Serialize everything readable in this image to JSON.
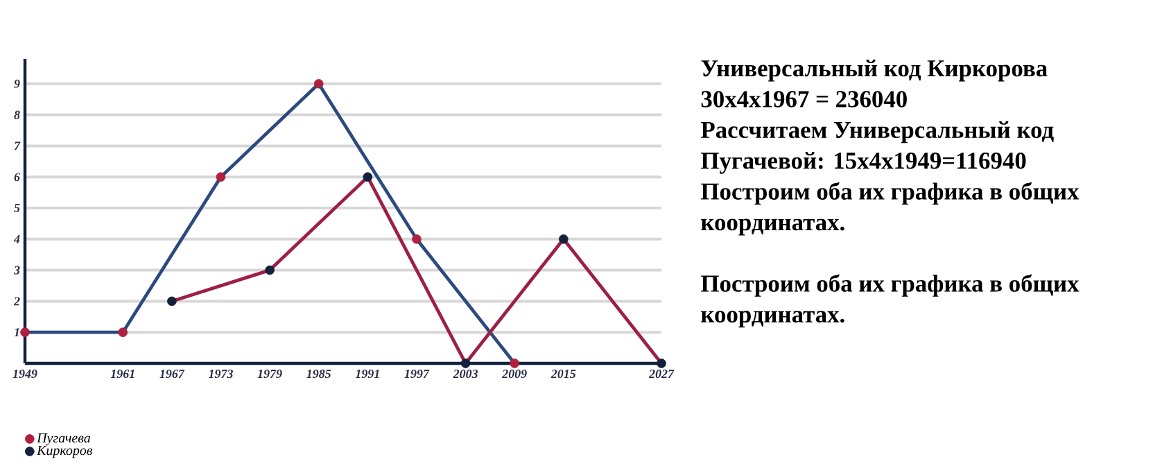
{
  "chart_data": {
    "type": "line",
    "xlim": [
      1949,
      2027
    ],
    "ylim": [
      0,
      9.8
    ],
    "xticks": [
      1949,
      1961,
      1967,
      1973,
      1979,
      1985,
      1991,
      1997,
      2003,
      2009,
      2015,
      2027
    ],
    "yticks": [
      1,
      2,
      3,
      4,
      5,
      6,
      7,
      8,
      9
    ],
    "grid": "y",
    "legend": "bottom left",
    "series": [
      {
        "marker": "none",
        "color": "#2c4a80",
        "x": [
          1949,
          1961,
          1973,
          1985,
          1997,
          2009
        ],
        "values": [
          1,
          1,
          6,
          9,
          4,
          0
        ]
      },
      {
        "marker": "none",
        "color": "#9e1f45",
        "x": [
          1967,
          1979,
          1991,
          2003,
          2015,
          2027
        ],
        "values": [
          2,
          3,
          6,
          0,
          4,
          0
        ]
      },
      {
        "type": "scatter",
        "marker": "circle",
        "name": "Пугачева",
        "color": "#b0203f",
        "x": [
          1949,
          1961,
          1973,
          1985,
          1997,
          2009
        ],
        "values": [
          1,
          1,
          6,
          9,
          4,
          0
        ]
      },
      {
        "type": "scatter",
        "marker": "circle",
        "name": "Киркоров",
        "color": "#14213d",
        "x": [
          1967,
          1979,
          1991,
          2003,
          2015,
          2027
        ],
        "values": [
          2,
          3,
          6,
          0,
          4,
          0
        ]
      }
    ],
    "annotations": [
      "Универсальный код Киркорова",
      "30x4x1967 = 236040",
      "Рассчитаем Универсальный код",
      "Пугачевой:  15x4x1949=116940",
      "Построим оба их графика в общих",
      "координатах.",
      "Построим оба их графика в общих",
      "координатах."
    ]
  }
}
